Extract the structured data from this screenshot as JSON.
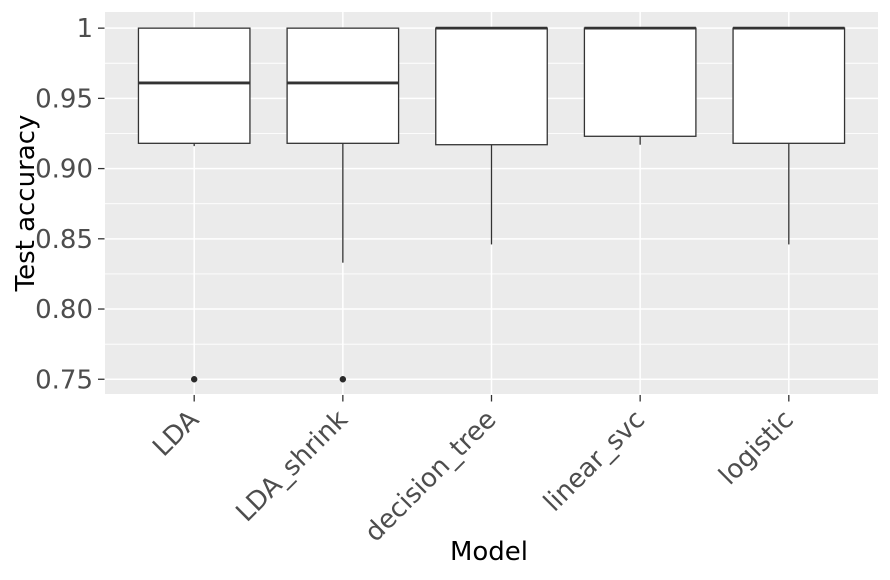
{
  "figure": {
    "background": "#ffffff"
  },
  "style": {
    "panel_bg": "#ebebeb",
    "grid_major_color": "#ffffff",
    "grid_minor_color": "#ffffff",
    "box_fill": "#ffffff",
    "box_edge_color": "#333333",
    "median_color": "#333333",
    "whisker_color": "#333333",
    "outlier_color": "#2a2a2a",
    "tick_mark_color": "#333333",
    "tick_label_color": "#4d4d4d",
    "axis_title_color": "#000000"
  },
  "chart_data": {
    "type": "boxplot",
    "title": "",
    "xlabel": "Model",
    "ylabel": "Test accuracy",
    "categories": [
      "LDA",
      "LDA_shrink",
      "decision_tree",
      "linear_svc",
      "logistic"
    ],
    "boxes": [
      {
        "label": "LDA",
        "whisker_low": 0.916,
        "q1": 0.918,
        "median": 0.961,
        "q3": 1.0,
        "whisker_high": 1.0,
        "outliers": [
          0.75
        ]
      },
      {
        "label": "LDA_shrink",
        "whisker_low": 0.833,
        "q1": 0.918,
        "median": 0.961,
        "q3": 1.0,
        "whisker_high": 1.0,
        "outliers": [
          0.75
        ]
      },
      {
        "label": "decision_tree",
        "whisker_low": 0.846,
        "q1": 0.917,
        "median": 1.0,
        "q3": 1.0,
        "whisker_high": 1.0,
        "outliers": []
      },
      {
        "label": "linear_svc",
        "whisker_low": 0.917,
        "q1": 0.923,
        "median": 1.0,
        "q3": 1.0,
        "whisker_high": 1.0,
        "outliers": []
      },
      {
        "label": "logistic",
        "whisker_low": 0.846,
        "q1": 0.918,
        "median": 1.0,
        "q3": 1.0,
        "whisker_high": 1.0,
        "outliers": []
      }
    ],
    "y_major_ticks": [
      {
        "value": 1.0,
        "label": "1"
      },
      {
        "value": 0.95,
        "label": "0.95"
      },
      {
        "value": 0.9,
        "label": "0.90"
      },
      {
        "value": 0.85,
        "label": "0.85"
      },
      {
        "value": 0.8,
        "label": "0.80"
      },
      {
        "value": 0.75,
        "label": "0.75"
      }
    ],
    "y_minor_ticks": [
      0.975,
      0.925,
      0.875,
      0.825,
      0.775
    ],
    "ylim": [
      0.7395,
      1.0115
    ],
    "x_tick_rotation_deg": 45,
    "grid": "on",
    "legend": "none",
    "theme": "ggplot-gray"
  }
}
